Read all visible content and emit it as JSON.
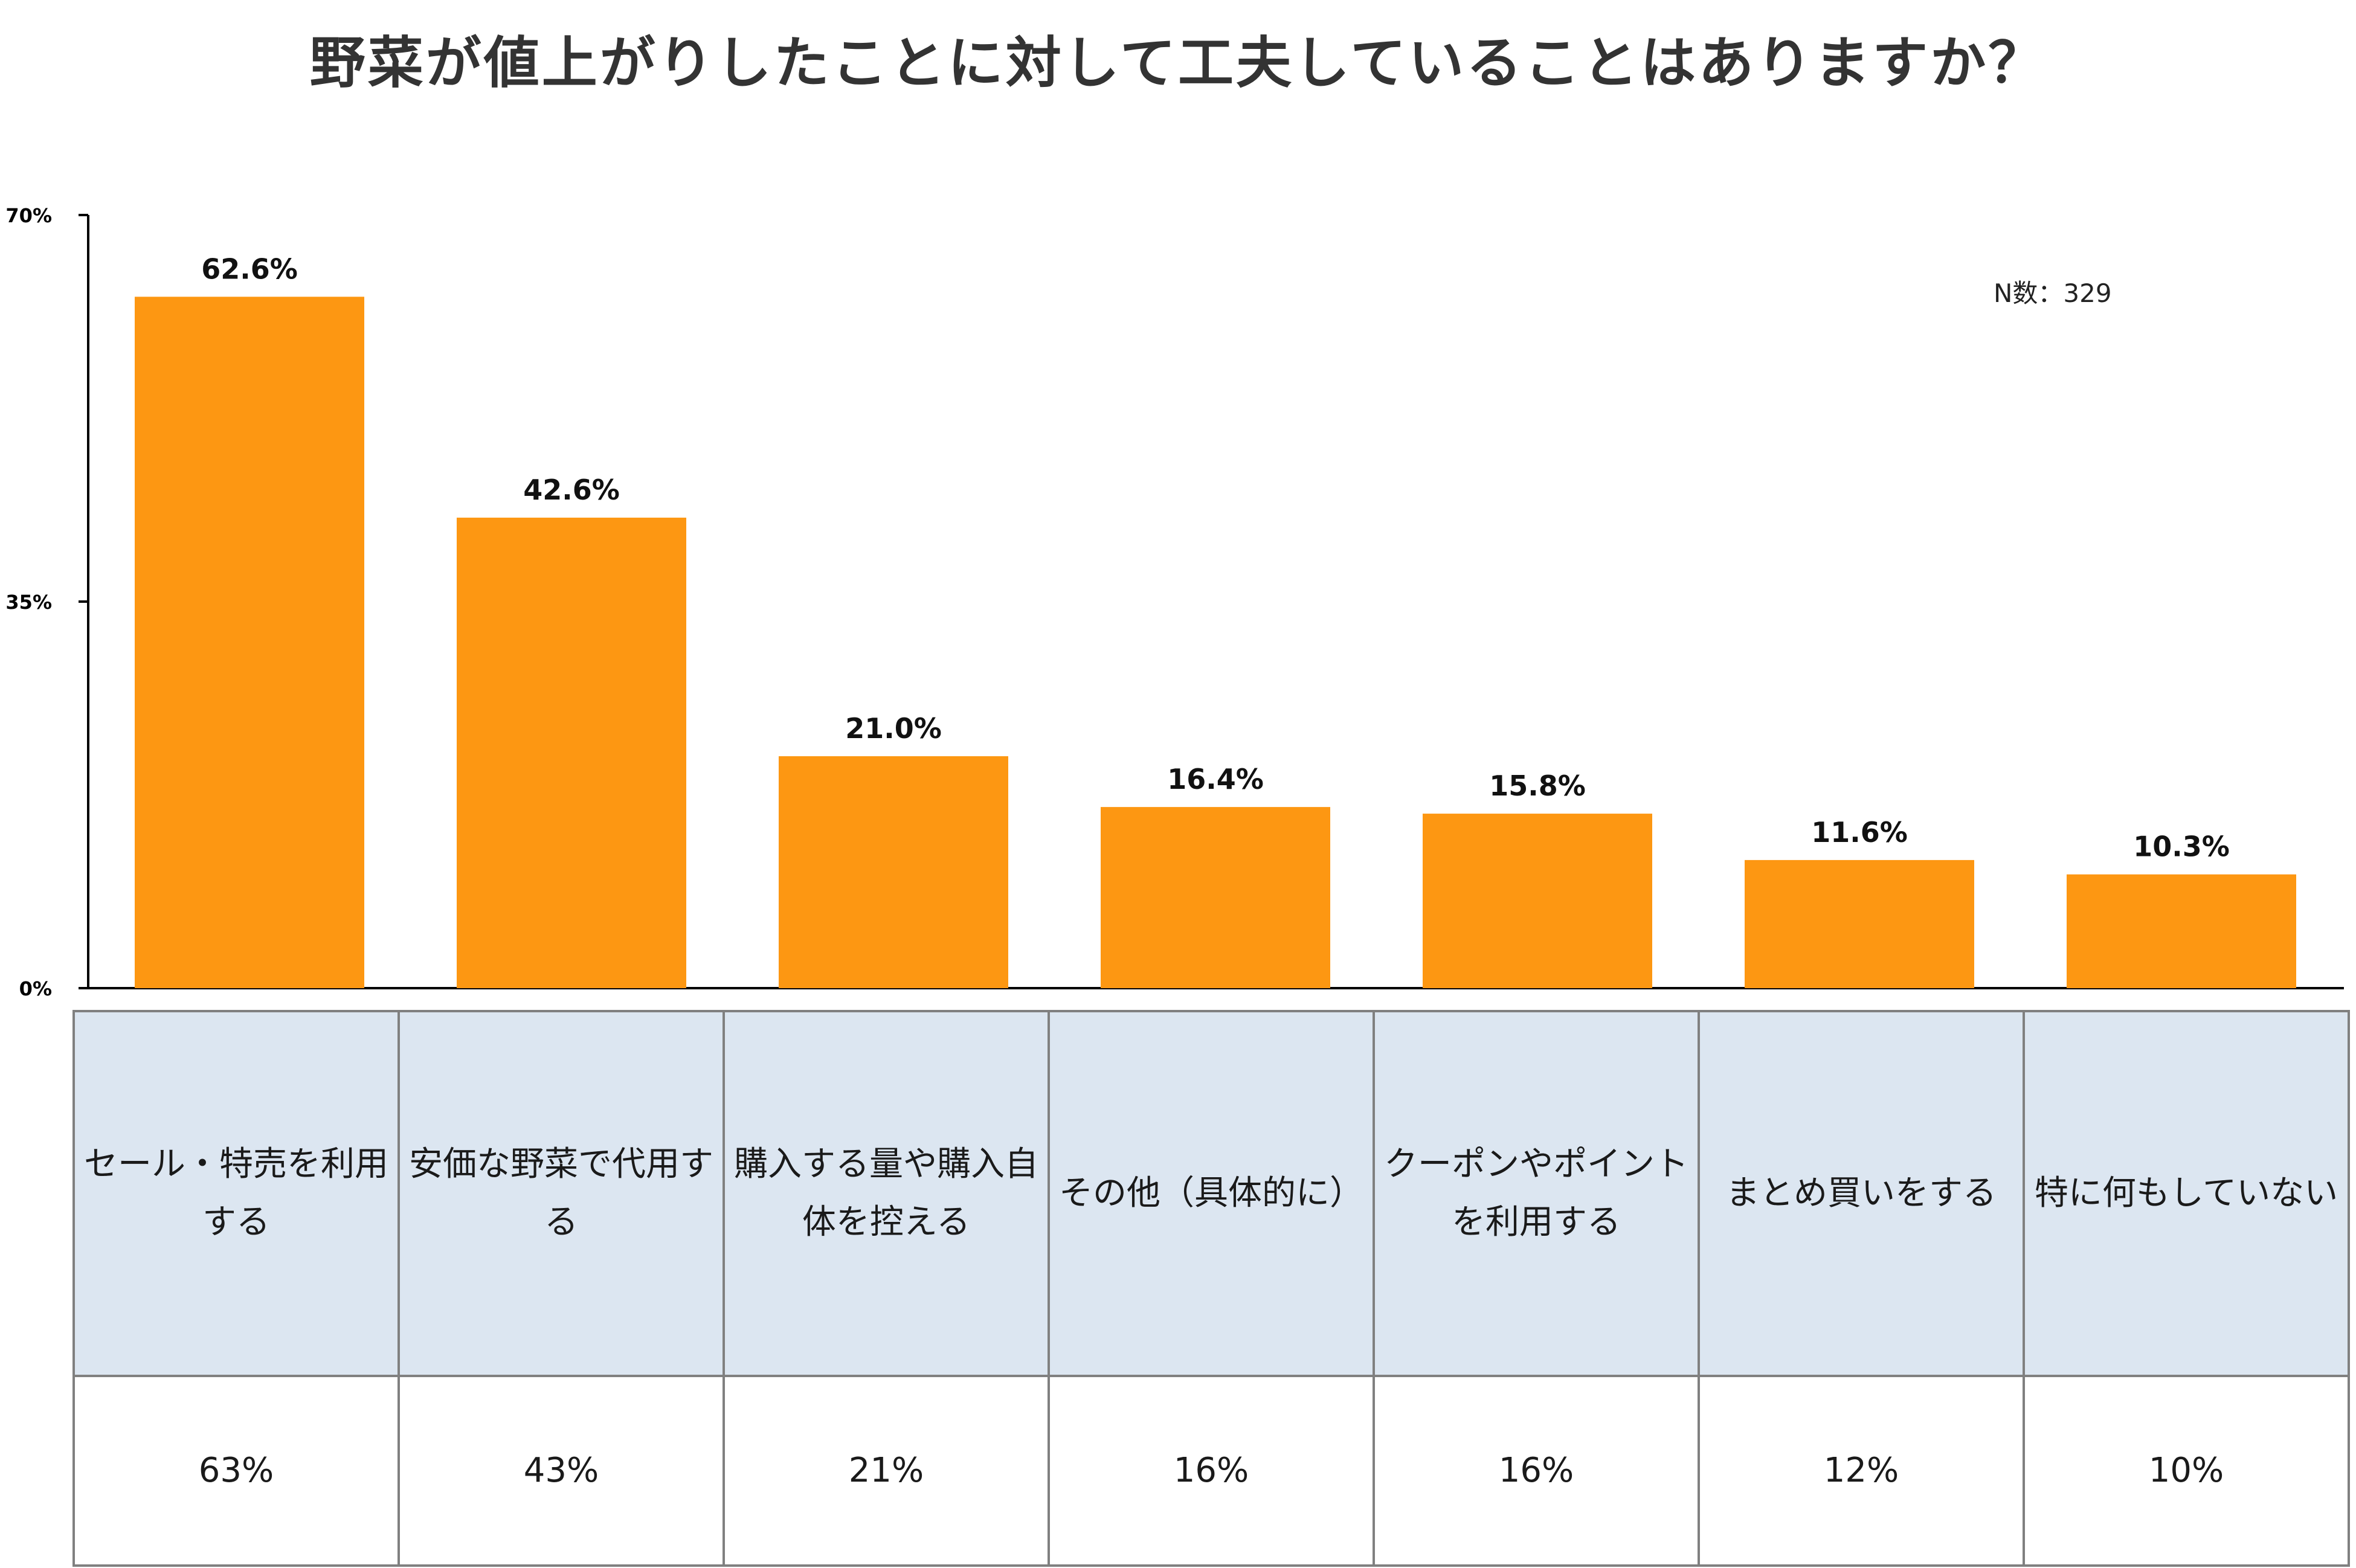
{
  "chart_data": {
    "type": "bar",
    "title": "野菜が値上がりしたことに対して工夫していることはありますか？",
    "note": "N数：329",
    "categories": [
      "セール・特売を利用する",
      "安価な野菜で代用する",
      "購入する量や購入自体を控える",
      "その他（具体的に）",
      "クーポンやポイントを利用する",
      "まとめ買いをする",
      "特に何もしていない"
    ],
    "values": [
      62.6,
      42.6,
      21.0,
      16.4,
      15.8,
      11.6,
      10.3
    ],
    "data_labels": [
      "62.6%",
      "42.6%",
      "21.0%",
      "16.4%",
      "15.8%",
      "11.6%",
      "10.3%"
    ],
    "table_values": [
      "63%",
      "43%",
      "21%",
      "16%",
      "16%",
      "12%",
      "10%"
    ],
    "yticks": [
      0,
      35,
      70
    ],
    "ytick_labels": [
      "0%",
      "35%",
      "70%"
    ],
    "ylim": [
      0,
      70
    ],
    "xlabel": "",
    "ylabel": "",
    "bar_color": "#fd9712",
    "grid": false,
    "legend": "none"
  }
}
